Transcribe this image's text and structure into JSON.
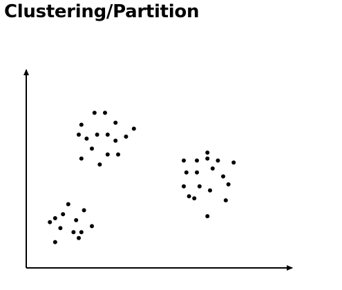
{
  "slide": {
    "title": "Clustering/Partition"
  },
  "colors": {
    "background": "#ffffff",
    "ink": "#000000"
  },
  "chart_data": {
    "type": "scatter",
    "title": "",
    "xlabel": "",
    "ylabel": "",
    "axes": "x and y arrows, no ticks",
    "grid": false,
    "xlim": [
      0,
      100
    ],
    "ylim": [
      0,
      100
    ],
    "series": [
      {
        "points": [
          [
            26,
            78
          ],
          [
            30,
            78
          ],
          [
            21,
            72
          ],
          [
            34,
            73
          ],
          [
            41,
            70
          ],
          [
            20,
            67
          ],
          [
            23,
            65
          ],
          [
            27,
            67
          ],
          [
            31,
            67
          ],
          [
            34,
            64
          ],
          [
            38,
            66
          ],
          [
            25,
            60
          ],
          [
            31,
            57
          ],
          [
            35,
            57
          ],
          [
            21,
            55
          ],
          [
            28,
            52
          ]
        ]
      },
      {
        "points": [
          [
            69,
            58
          ],
          [
            65,
            54
          ],
          [
            69,
            55
          ],
          [
            73,
            54
          ],
          [
            79,
            53
          ],
          [
            65,
            48
          ],
          [
            71,
            50
          ],
          [
            75,
            46
          ],
          [
            60,
            54
          ],
          [
            61,
            48
          ],
          [
            60,
            41
          ],
          [
            66,
            41
          ],
          [
            70,
            39
          ],
          [
            77,
            42
          ],
          [
            64,
            35
          ],
          [
            62,
            36
          ],
          [
            76,
            34
          ],
          [
            69,
            26
          ]
        ]
      },
      {
        "points": [
          [
            16,
            32
          ],
          [
            22,
            29
          ],
          [
            11,
            25
          ],
          [
            14,
            27
          ],
          [
            19,
            24
          ],
          [
            9,
            23
          ],
          [
            13,
            20
          ],
          [
            18,
            18
          ],
          [
            25,
            21
          ],
          [
            21,
            18
          ],
          [
            20,
            15
          ],
          [
            11,
            13
          ]
        ]
      }
    ]
  }
}
